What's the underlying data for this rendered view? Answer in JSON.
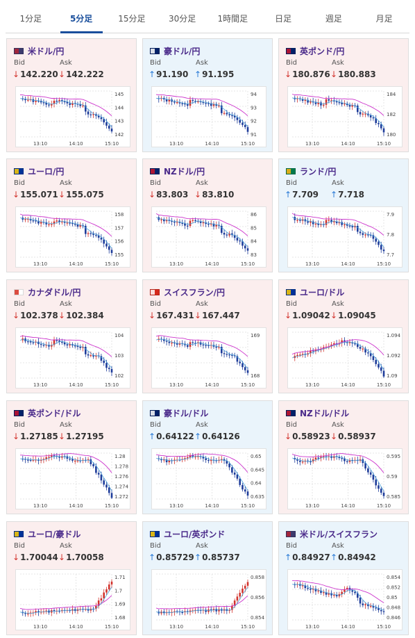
{
  "tabs": [
    {
      "label": "1分足",
      "active": false
    },
    {
      "label": "5分足",
      "active": true
    },
    {
      "label": "15分足",
      "active": false
    },
    {
      "label": "30分足",
      "active": false
    },
    {
      "label": "1時間足",
      "active": false
    },
    {
      "label": "日足",
      "active": false
    },
    {
      "label": "週足",
      "active": false
    },
    {
      "label": "月足",
      "active": false
    }
  ],
  "labels": {
    "bid": "Bid",
    "ask": "Ask"
  },
  "colors": {
    "down_bg": "#fbeeee",
    "up_bg": "#eaf4fb",
    "arrow_down": "#d2342e",
    "arrow_up": "#2a7bd6",
    "pair_text": "#4a2a8a",
    "ma_line": "#cc33cc",
    "ma_short": "#4da3d9",
    "candle_up": "#d2342e",
    "candle_down": "#1e3c9a"
  },
  "cards": [
    {
      "pair": "米ドル/円",
      "flag": "us-jp",
      "direction": "down",
      "bid_arrow": "↓",
      "bid": "142.220",
      "ask_arrow": "↓",
      "ask": "142.222",
      "times": [
        "13:10",
        "14:10",
        "15:10"
      ],
      "yticks": [
        "145",
        "144",
        "143",
        "142"
      ],
      "trend": "fall"
    },
    {
      "pair": "豪ドル/円",
      "flag": "au-jp",
      "direction": "up",
      "bid_arrow": "↑",
      "bid": "91.190",
      "ask_arrow": "↑",
      "ask": "91.195",
      "times": [
        "13:10",
        "14:10",
        "15:10"
      ],
      "yticks": [
        "94",
        "93",
        "92",
        "91"
      ],
      "trend": "fall"
    },
    {
      "pair": "英ポンド/円",
      "flag": "gb-jp",
      "direction": "down",
      "bid_arrow": "↓",
      "bid": "180.876",
      "ask_arrow": "↓",
      "ask": "180.883",
      "times": [
        "13:10",
        "14:10",
        "15:10"
      ],
      "yticks": [
        "184",
        "182",
        "180"
      ],
      "trend": "fall"
    },
    {
      "pair": "ユーロ/円",
      "flag": "eu-jp",
      "direction": "down",
      "bid_arrow": "↓",
      "bid": "155.071",
      "ask_arrow": "↓",
      "ask": "155.075",
      "times": [
        "13:10",
        "14:10",
        "15:10"
      ],
      "yticks": [
        "158",
        "157",
        "156",
        "155"
      ],
      "trend": "fall"
    },
    {
      "pair": "NZドル/円",
      "flag": "nz-jp",
      "direction": "down",
      "bid_arrow": "↓",
      "bid": "83.803",
      "ask_arrow": "↓",
      "ask": "83.810",
      "times": [
        "13:10",
        "14:10",
        "15:10"
      ],
      "yticks": [
        "86",
        "85",
        "84",
        "83"
      ],
      "trend": "fall"
    },
    {
      "pair": "ランド/円",
      "flag": "za-jp",
      "direction": "up",
      "bid_arrow": "↑",
      "bid": "7.709",
      "ask_arrow": "↑",
      "ask": "7.718",
      "times": [
        "13:10",
        "14:10",
        "15:10"
      ],
      "yticks": [
        "7.9",
        "7.8",
        "7.7"
      ],
      "trend": "fall"
    },
    {
      "pair": "カナダドル/円",
      "flag": "ca-jp",
      "direction": "down",
      "bid_arrow": "↓",
      "bid": "102.378",
      "ask_arrow": "↓",
      "ask": "102.384",
      "times": [
        "13:10",
        "14:10",
        "15:10"
      ],
      "yticks": [
        "104",
        "103",
        "102"
      ],
      "trend": "fall"
    },
    {
      "pair": "スイスフラン/円",
      "flag": "ch-jp",
      "direction": "down",
      "bid_arrow": "↓",
      "bid": "167.431",
      "ask_arrow": "↓",
      "ask": "167.447",
      "times": [
        "13:10",
        "14:10",
        "15:10"
      ],
      "yticks": [
        "169",
        "168"
      ],
      "trend": "fall"
    },
    {
      "pair": "ユーロ/ドル",
      "flag": "eu-us",
      "direction": "down",
      "bid_arrow": "↓",
      "bid": "1.09042",
      "ask_arrow": "↓",
      "ask": "1.09045",
      "times": [
        "13:10",
        "14:10",
        "15:10"
      ],
      "yticks": [
        "1.094",
        "1.092",
        "1.09"
      ],
      "trend": "riseFall"
    },
    {
      "pair": "英ポンド/ドル",
      "flag": "gb-us",
      "direction": "down",
      "bid_arrow": "↓",
      "bid": "1.27185",
      "ask_arrow": "↓",
      "ask": "1.27195",
      "times": [
        "13:10",
        "14:10",
        "15:10"
      ],
      "yticks": [
        "1.28",
        "1.278",
        "1.276",
        "1.274",
        "1.272"
      ],
      "trend": "flatFall"
    },
    {
      "pair": "豪ドル/ドル",
      "flag": "au-us",
      "direction": "up",
      "bid_arrow": "↑",
      "bid": "0.64122",
      "ask_arrow": "↑",
      "ask": "0.64126",
      "times": [
        "13:10",
        "14:10",
        "15:10"
      ],
      "yticks": [
        "0.65",
        "0.645",
        "0.64",
        "0.635"
      ],
      "trend": "flatFall"
    },
    {
      "pair": "NZドル/ドル",
      "flag": "nz-us",
      "direction": "down",
      "bid_arrow": "↓",
      "bid": "0.58923",
      "ask_arrow": "↓",
      "ask": "0.58937",
      "times": [
        "13:10",
        "14:10",
        "15:10"
      ],
      "yticks": [
        "0.595",
        "0.59",
        "0.585"
      ],
      "trend": "flatFall"
    },
    {
      "pair": "ユーロ/豪ドル",
      "flag": "eu-au",
      "direction": "down",
      "bid_arrow": "↓",
      "bid": "1.70044",
      "ask_arrow": "↓",
      "ask": "1.70058",
      "times": [
        "13:10",
        "14:10",
        "15:10"
      ],
      "yticks": [
        "1.71",
        "1.7",
        "1.69",
        "1.68"
      ],
      "trend": "rise"
    },
    {
      "pair": "ユーロ/英ポンド",
      "flag": "eu-gb",
      "direction": "up",
      "bid_arrow": "↑",
      "bid": "0.85729",
      "ask_arrow": "↑",
      "ask": "0.85737",
      "times": [
        "13:10",
        "14:10",
        "15:10"
      ],
      "yticks": [
        "0.858",
        "0.856",
        "0.854"
      ],
      "trend": "rise"
    },
    {
      "pair": "米ドル/スイスフラン",
      "flag": "us-ch",
      "direction": "up",
      "bid_arrow": "↑",
      "bid": "0.84927",
      "ask_arrow": "↑",
      "ask": "0.84942",
      "times": [
        "13:10",
        "14:10",
        "15:10"
      ],
      "yticks": [
        "0.854",
        "0.852",
        "0.85",
        "0.848",
        "0.846"
      ],
      "trend": "fallBump"
    }
  ]
}
